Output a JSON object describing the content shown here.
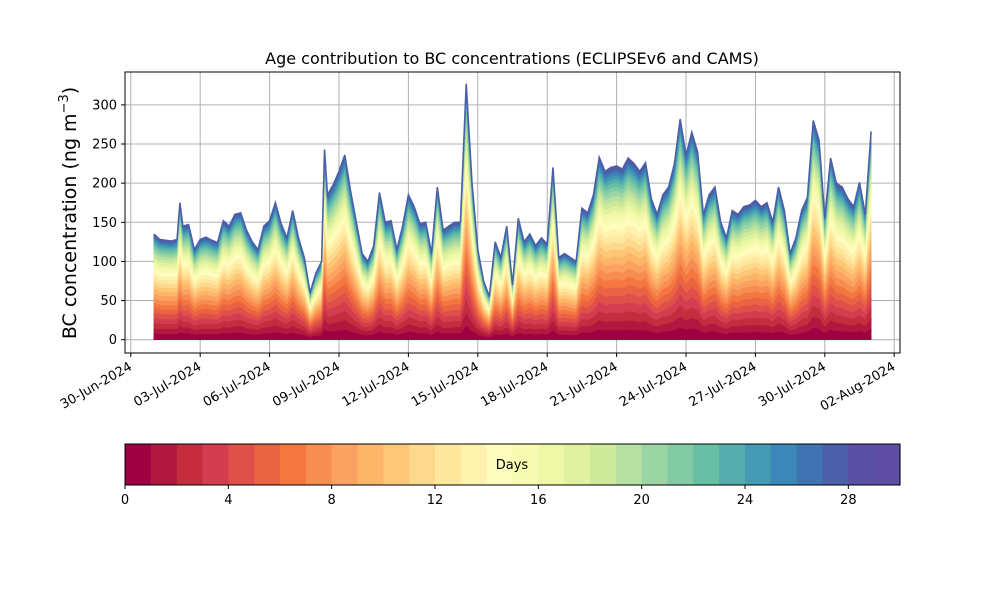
{
  "chart_data": {
    "type": "area",
    "stacked": true,
    "title": "Age contribution to BC concentrations (ECLIPSEv6 and CAMS)",
    "ylabel": "BC concentration (ng m",
    "ylabel_superscript": "−3",
    "ylabel_close": ")",
    "xlabel": "",
    "grid": true,
    "ylim": [
      -17,
      342
    ],
    "xlim": [
      "2024-06-29T18:00",
      "2024-08-02T06:00"
    ],
    "yticks": [
      0,
      50,
      100,
      150,
      200,
      250,
      300
    ],
    "ytick_labels": [
      "0",
      "50",
      "100",
      "150",
      "200",
      "250",
      "300"
    ],
    "xticks": [
      "2024-06-30",
      "2024-07-03",
      "2024-07-06",
      "2024-07-09",
      "2024-07-12",
      "2024-07-15",
      "2024-07-18",
      "2024-07-21",
      "2024-07-24",
      "2024-07-27",
      "2024-07-30",
      "2024-08-02"
    ],
    "xtick_labels": [
      "30-Jun-2024",
      "03-Jul-2024",
      "06-Jul-2024",
      "09-Jul-2024",
      "12-Jul-2024",
      "15-Jul-2024",
      "18-Jul-2024",
      "21-Jul-2024",
      "24-Jul-2024",
      "27-Jul-2024",
      "30-Jul-2024",
      "02-Aug-2024"
    ],
    "total_series": [
      [
        "2024-07-01T00:00",
        135
      ],
      [
        "2024-07-01T06:00",
        128
      ],
      [
        "2024-07-01T12:00",
        127
      ],
      [
        "2024-07-01T18:00",
        126
      ],
      [
        "2024-07-02T00:00",
        128
      ],
      [
        "2024-07-02T03:00",
        175
      ],
      [
        "2024-07-02T06:00",
        145
      ],
      [
        "2024-07-02T12:00",
        147
      ],
      [
        "2024-07-02T18:00",
        115
      ],
      [
        "2024-07-03T00:00",
        128
      ],
      [
        "2024-07-03T06:00",
        131
      ],
      [
        "2024-07-03T12:00",
        127
      ],
      [
        "2024-07-03T18:00",
        124
      ],
      [
        "2024-07-04T00:00",
        152
      ],
      [
        "2024-07-04T06:00",
        145
      ],
      [
        "2024-07-04T12:00",
        160
      ],
      [
        "2024-07-04T18:00",
        162
      ],
      [
        "2024-07-05T00:00",
        140
      ],
      [
        "2024-07-05T06:00",
        125
      ],
      [
        "2024-07-05T12:00",
        115
      ],
      [
        "2024-07-05T18:00",
        145
      ],
      [
        "2024-07-06T00:00",
        152
      ],
      [
        "2024-07-06T06:00",
        175
      ],
      [
        "2024-07-06T12:00",
        148
      ],
      [
        "2024-07-06T18:00",
        130
      ],
      [
        "2024-07-07T00:00",
        165
      ],
      [
        "2024-07-07T06:00",
        130
      ],
      [
        "2024-07-07T12:00",
        105
      ],
      [
        "2024-07-07T18:00",
        60
      ],
      [
        "2024-07-08T00:00",
        85
      ],
      [
        "2024-07-08T06:00",
        100
      ],
      [
        "2024-07-08T09:00",
        243
      ],
      [
        "2024-07-08T12:00",
        185
      ],
      [
        "2024-07-08T18:00",
        198
      ],
      [
        "2024-07-09T00:00",
        215
      ],
      [
        "2024-07-09T06:00",
        236
      ],
      [
        "2024-07-09T12:00",
        190
      ],
      [
        "2024-07-09T18:00",
        150
      ],
      [
        "2024-07-10T00:00",
        110
      ],
      [
        "2024-07-10T06:00",
        100
      ],
      [
        "2024-07-10T12:00",
        120
      ],
      [
        "2024-07-10T18:00",
        188
      ],
      [
        "2024-07-11T00:00",
        150
      ],
      [
        "2024-07-11T06:00",
        152
      ],
      [
        "2024-07-11T12:00",
        115
      ],
      [
        "2024-07-11T18:00",
        145
      ],
      [
        "2024-07-12T00:00",
        185
      ],
      [
        "2024-07-12T06:00",
        170
      ],
      [
        "2024-07-12T12:00",
        148
      ],
      [
        "2024-07-12T18:00",
        150
      ],
      [
        "2024-07-13T00:00",
        110
      ],
      [
        "2024-07-13T06:00",
        195
      ],
      [
        "2024-07-13T12:00",
        140
      ],
      [
        "2024-07-13T18:00",
        145
      ],
      [
        "2024-07-14T00:00",
        150
      ],
      [
        "2024-07-14T06:00",
        150
      ],
      [
        "2024-07-14T12:00",
        327
      ],
      [
        "2024-07-14T18:00",
        200
      ],
      [
        "2024-07-15T00:00",
        115
      ],
      [
        "2024-07-15T06:00",
        75
      ],
      [
        "2024-07-15T12:00",
        55
      ],
      [
        "2024-07-15T18:00",
        125
      ],
      [
        "2024-07-16T00:00",
        105
      ],
      [
        "2024-07-16T06:00",
        145
      ],
      [
        "2024-07-16T12:00",
        70
      ],
      [
        "2024-07-16T18:00",
        155
      ],
      [
        "2024-07-17T00:00",
        125
      ],
      [
        "2024-07-17T06:00",
        135
      ],
      [
        "2024-07-17T12:00",
        120
      ],
      [
        "2024-07-17T18:00",
        130
      ],
      [
        "2024-07-18T00:00",
        122
      ],
      [
        "2024-07-18T06:00",
        220
      ],
      [
        "2024-07-18T12:00",
        105
      ],
      [
        "2024-07-18T18:00",
        110
      ],
      [
        "2024-07-19T00:00",
        105
      ],
      [
        "2024-07-19T06:00",
        100
      ],
      [
        "2024-07-19T12:00",
        168
      ],
      [
        "2024-07-19T18:00",
        162
      ],
      [
        "2024-07-20T00:00",
        185
      ],
      [
        "2024-07-20T06:00",
        233
      ],
      [
        "2024-07-20T12:00",
        215
      ],
      [
        "2024-07-20T18:00",
        220
      ],
      [
        "2024-07-21T00:00",
        222
      ],
      [
        "2024-07-21T06:00",
        218
      ],
      [
        "2024-07-21T12:00",
        232
      ],
      [
        "2024-07-21T18:00",
        225
      ],
      [
        "2024-07-22T00:00",
        215
      ],
      [
        "2024-07-22T06:00",
        226
      ],
      [
        "2024-07-22T12:00",
        180
      ],
      [
        "2024-07-22T18:00",
        160
      ],
      [
        "2024-07-23T00:00",
        185
      ],
      [
        "2024-07-23T06:00",
        195
      ],
      [
        "2024-07-23T12:00",
        225
      ],
      [
        "2024-07-23T18:00",
        282
      ],
      [
        "2024-07-24T00:00",
        235
      ],
      [
        "2024-07-24T06:00",
        265
      ],
      [
        "2024-07-24T12:00",
        240
      ],
      [
        "2024-07-24T18:00",
        160
      ],
      [
        "2024-07-25T00:00",
        185
      ],
      [
        "2024-07-25T06:00",
        195
      ],
      [
        "2024-07-25T12:00",
        150
      ],
      [
        "2024-07-25T18:00",
        130
      ],
      [
        "2024-07-26T00:00",
        165
      ],
      [
        "2024-07-26T06:00",
        160
      ],
      [
        "2024-07-26T12:00",
        170
      ],
      [
        "2024-07-26T18:00",
        172
      ],
      [
        "2024-07-27T00:00",
        178
      ],
      [
        "2024-07-27T06:00",
        170
      ],
      [
        "2024-07-27T12:00",
        175
      ],
      [
        "2024-07-27T18:00",
        150
      ],
      [
        "2024-07-28T00:00",
        195
      ],
      [
        "2024-07-28T06:00",
        165
      ],
      [
        "2024-07-28T12:00",
        110
      ],
      [
        "2024-07-28T18:00",
        130
      ],
      [
        "2024-07-29T00:00",
        165
      ],
      [
        "2024-07-29T06:00",
        182
      ],
      [
        "2024-07-29T12:00",
        280
      ],
      [
        "2024-07-29T18:00",
        255
      ],
      [
        "2024-07-30T00:00",
        155
      ],
      [
        "2024-07-30T06:00",
        232
      ],
      [
        "2024-07-30T12:00",
        200
      ],
      [
        "2024-07-30T18:00",
        195
      ],
      [
        "2024-07-31T00:00",
        180
      ],
      [
        "2024-07-31T06:00",
        170
      ],
      [
        "2024-07-31T12:00",
        201
      ],
      [
        "2024-07-31T18:00",
        160
      ],
      [
        "2024-08-01T00:00",
        266
      ]
    ],
    "bin_layers": 30,
    "colorbar": {
      "label": "Days",
      "min": 0,
      "max": 30,
      "ticks": [
        0,
        4,
        8,
        12,
        16,
        20,
        24,
        28
      ],
      "tick_labels": [
        "0",
        "4",
        "8",
        "12",
        "16",
        "20",
        "24",
        "28"
      ],
      "colors": [
        "#9e0142",
        "#b1173f",
        "#c52d3f",
        "#d43d4f",
        "#e0504a",
        "#ea6343",
        "#f4773f",
        "#f88d51",
        "#fba263",
        "#fdb567",
        "#fec778",
        "#fed88c",
        "#fee89d",
        "#fff2ad",
        "#fffdbd",
        "#f7fbb2",
        "#eef8a6",
        "#e0f29f",
        "#cde999",
        "#b6e1a2",
        "#9bd5a4",
        "#82cba5",
        "#68c0a4",
        "#55aead",
        "#4499b4",
        "#3a87b8",
        "#3f74b1",
        "#4c60a8",
        "#5a51a2",
        "#5e4fa2"
      ]
    }
  }
}
